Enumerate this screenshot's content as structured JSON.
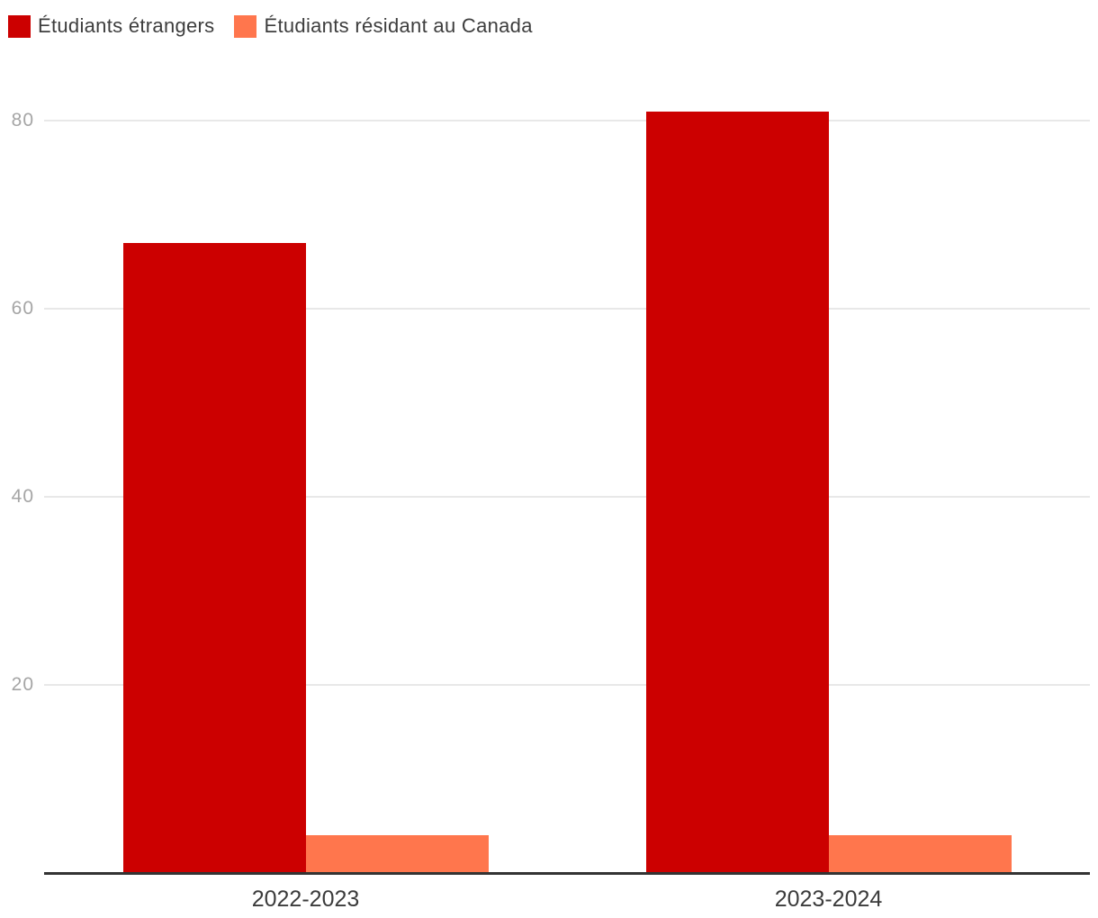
{
  "chart_data": {
    "type": "bar",
    "categories": [
      "2022-2023",
      "2023-2024"
    ],
    "series": [
      {
        "name": "Étudiants étrangers",
        "color": "#cc0000",
        "values": [
          67,
          81
        ]
      },
      {
        "name": "Étudiants résidant au Canada",
        "color": "#ff764d",
        "values": [
          4,
          4
        ]
      }
    ],
    "title": "",
    "xlabel": "",
    "ylabel": "",
    "ylim": [
      0,
      85
    ],
    "yticks": [
      20,
      40,
      60,
      80
    ],
    "grid": true,
    "legend_position": "top-left",
    "background_color": "#ffffff",
    "gridline_color": "#e8e8e8",
    "axis_line_color": "#333333",
    "tick_label_color": "#a5a5a5",
    "category_label_color": "#3b3b3b"
  }
}
